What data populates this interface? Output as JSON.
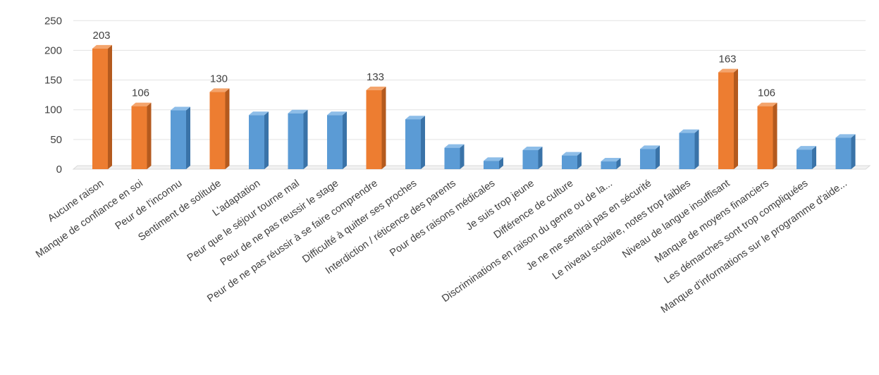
{
  "chart_data": {
    "type": "bar",
    "categories": [
      "Aucune raison",
      "Manque de confiance en soi",
      "Peur de l'inconnu",
      "Sentiment de solitude",
      "L'adaptation",
      "Peur que le séjour tourne mal",
      "Peur de ne pas reussir le stage",
      "Peur de ne pas réussir à se faire comprendre",
      "Difficulté à quitter ses proches",
      "Interdiction / réticence des parents",
      "Pour des raisons médicales",
      "Je suis trop jeune",
      "Différence de culture",
      "Discriminations en raison du genre ou de la...",
      "Je ne me sentirai pas en sécurité",
      "Le niveau scolaire, notes trop faibles",
      "Niveau de langue insuffisant",
      "Manque de moyens financiers",
      "Les démarches sont trop compliquées",
      "Manque d'informations sur le programme d'aide..."
    ],
    "values": [
      203,
      106,
      99,
      130,
      91,
      94,
      91,
      133,
      84,
      36,
      14,
      32,
      23,
      13,
      34,
      61,
      163,
      106,
      33,
      53
    ],
    "highlighted": [
      true,
      true,
      false,
      true,
      false,
      false,
      false,
      true,
      false,
      false,
      false,
      false,
      false,
      false,
      false,
      false,
      true,
      true,
      false,
      false
    ],
    "data_labels": [
      "203",
      "106",
      "",
      "130",
      "",
      "",
      "",
      "133",
      "",
      "",
      "",
      "",
      "",
      "",
      "",
      "",
      "163",
      "106",
      "",
      ""
    ],
    "y_ticks": [
      "0",
      "50",
      "100",
      "150",
      "200",
      "250"
    ],
    "ylim": [
      0,
      250
    ],
    "grid": true,
    "colors": {
      "highlight": "#ED7D31",
      "highlight_dark": "#B45A1E",
      "highlight_top": "#F4A46C",
      "normal": "#5B9BD5",
      "normal_dark": "#3A73A8",
      "normal_top": "#8DBDE8",
      "grid": "#E3E3E3",
      "text": "#404040"
    }
  }
}
